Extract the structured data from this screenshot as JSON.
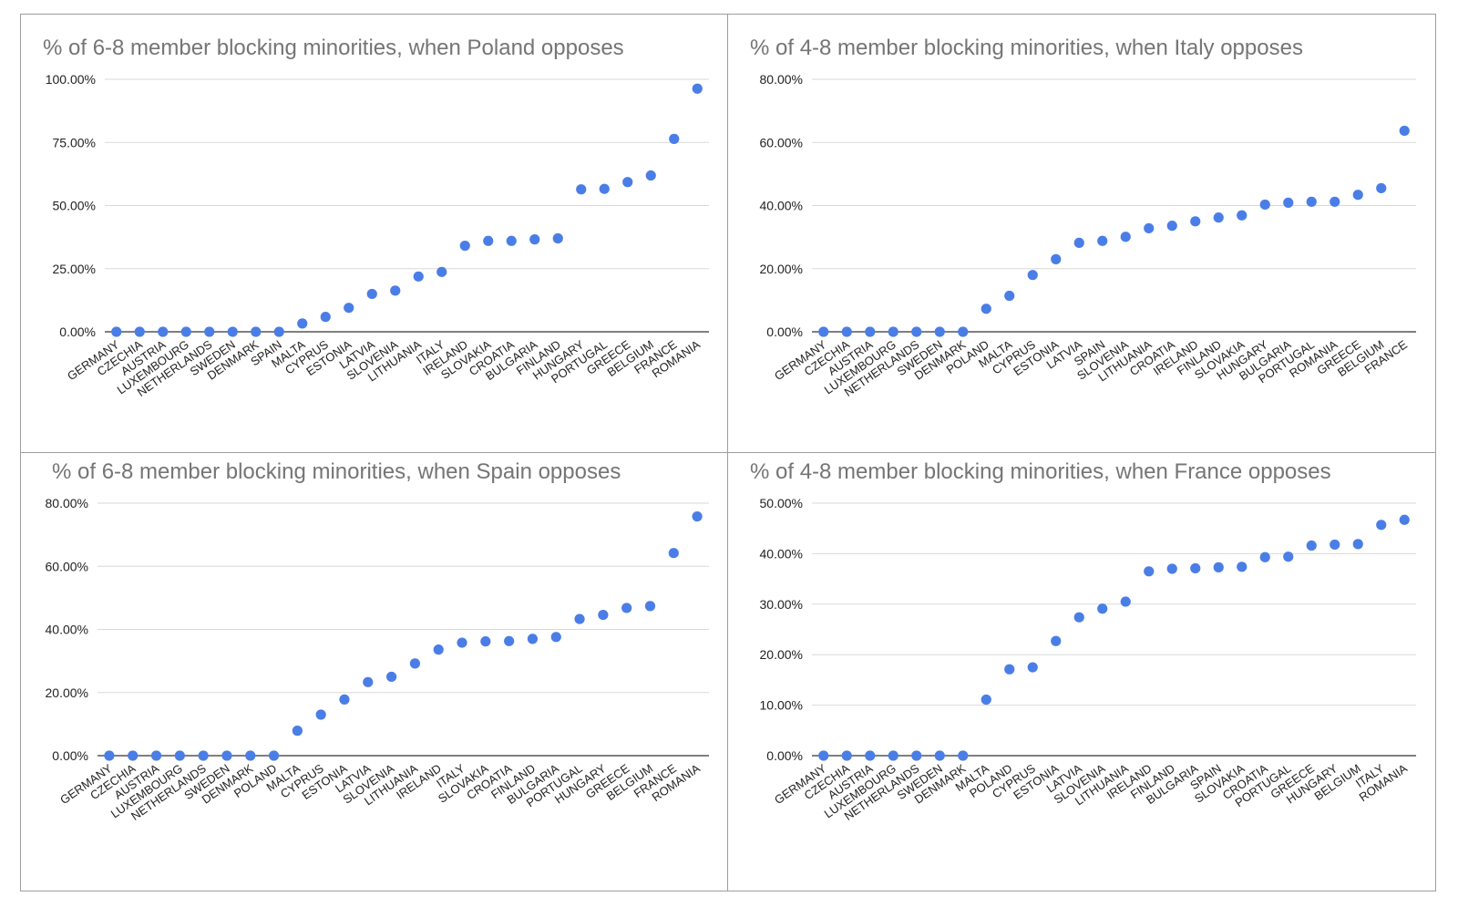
{
  "style": {
    "dot_color": "#4a7ee6",
    "grid_color": "#d9d9d9",
    "title_color": "#757575"
  },
  "chart_data": [
    {
      "type": "scatter",
      "title": "% of 6-8 member blocking minorities, when Poland opposes",
      "categories": [
        "GERMANY",
        "CZECHIA",
        "AUSTRIA",
        "LUXEMBOURG",
        "NETHERLANDS",
        "SWEDEN",
        "DENMARK",
        "SPAIN",
        "MALTA",
        "CYPRUS",
        "ESTONIA",
        "LATVIA",
        "SLOVENIA",
        "LITHUANIA",
        "ITALY",
        "IRELAND",
        "SLOVAKIA",
        "CROATIA",
        "BULGARIA",
        "FINLAND",
        "HUNGARY",
        "PORTUGAL",
        "GREECE",
        "BELGIUM",
        "FRANCE",
        "ROMANIA"
      ],
      "values": [
        0,
        0,
        0,
        0,
        0,
        0,
        0,
        0,
        3.3,
        5.9,
        9.5,
        15.0,
        16.3,
        21.9,
        23.7,
        34.1,
        36.0,
        36.0,
        36.6,
        37.0,
        56.4,
        56.6,
        59.3,
        61.9,
        76.4,
        96.3
      ],
      "ylim": [
        0,
        100
      ],
      "yticks": [
        "100.00%",
        "75.00%",
        "50.00%",
        "25.00%",
        "0.00%"
      ],
      "grid": true,
      "legend": "none"
    },
    {
      "type": "scatter",
      "title": "% of 4-8 member blocking minorities, when Italy opposes",
      "categories": [
        "GERMANY",
        "CZECHIA",
        "AUSTRIA",
        "LUXEMBOURG",
        "NETHERLANDS",
        "SWEDEN",
        "DENMARK",
        "POLAND",
        "MALTA",
        "CYPRUS",
        "ESTONIA",
        "LATVIA",
        "SPAIN",
        "SLOVENIA",
        "LITHUANIA",
        "CROATIA",
        "IRELAND",
        "FINLAND",
        "SLOVAKIA",
        "HUNGARY",
        "BULGARIA",
        "PORTUGAL",
        "ROMANIA",
        "GREECE",
        "BELGIUM",
        "FRANCE"
      ],
      "values": [
        0,
        0,
        0,
        0,
        0,
        0,
        0,
        7.3,
        11.4,
        18.0,
        23.0,
        28.2,
        28.8,
        30.1,
        32.8,
        33.6,
        35.0,
        36.2,
        36.9,
        40.3,
        40.9,
        41.2,
        41.2,
        43.4,
        45.5,
        63.7
      ],
      "ylim": [
        0,
        80
      ],
      "yticks": [
        "80.00%",
        "60.00%",
        "40.00%",
        "20.00%",
        "0.00%"
      ],
      "grid": true,
      "legend": "none"
    },
    {
      "type": "scatter",
      "title": "% of 6-8 member blocking minorities, when Spain opposes",
      "categories": [
        "GERMANY",
        "CZECHIA",
        "AUSTRIA",
        "LUXEMBOURG",
        "NETHERLANDS",
        "SWEDEN",
        "DENMARK",
        "POLAND",
        "MALTA",
        "CYPRUS",
        "ESTONIA",
        "LATVIA",
        "SLOVENIA",
        "LITHUANIA",
        "IRELAND",
        "ITALY",
        "SLOVAKIA",
        "CROATIA",
        "FINLAND",
        "BULGARIA",
        "PORTUGAL",
        "HUNGARY",
        "GREECE",
        "BELGIUM",
        "FRANCE",
        "ROMANIA"
      ],
      "values": [
        0,
        0,
        0,
        0,
        0,
        0,
        0,
        0,
        7.9,
        13.0,
        17.8,
        23.3,
        25.0,
        29.2,
        33.6,
        35.8,
        36.2,
        36.3,
        37.0,
        37.6,
        43.3,
        44.6,
        46.8,
        47.4,
        64.2,
        75.8
      ],
      "ylim": [
        0,
        80
      ],
      "yticks": [
        "80.00%",
        "60.00%",
        "40.00%",
        "20.00%",
        "0.00%"
      ],
      "grid": true,
      "legend": "none"
    },
    {
      "type": "scatter",
      "title": "% of 4-8 member blocking minorities, when France opposes",
      "categories": [
        "GERMANY",
        "CZECHIA",
        "AUSTRIA",
        "LUXEMBOURG",
        "NETHERLANDS",
        "SWEDEN",
        "DENMARK",
        "MALTA",
        "POLAND",
        "CYPRUS",
        "ESTONIA",
        "LATVIA",
        "SLOVENIA",
        "LITHUANIA",
        "IRELAND",
        "FINLAND",
        "BULGARIA",
        "SPAIN",
        "SLOVAKIA",
        "CROATIA",
        "PORTUGAL",
        "GREECE",
        "HUNGARY",
        "BELGIUM",
        "ITALY",
        "ROMANIA"
      ],
      "values": [
        0,
        0,
        0,
        0,
        0,
        0,
        0,
        11.1,
        17.1,
        17.5,
        22.7,
        27.4,
        29.1,
        30.5,
        36.5,
        37.0,
        37.1,
        37.3,
        37.4,
        39.3,
        39.4,
        41.6,
        41.8,
        41.9,
        45.7,
        46.7
      ],
      "ylim": [
        0,
        50
      ],
      "yticks": [
        "50.00%",
        "40.00%",
        "30.00%",
        "20.00%",
        "10.00%",
        "0.00%"
      ],
      "grid": true,
      "legend": "none"
    }
  ]
}
